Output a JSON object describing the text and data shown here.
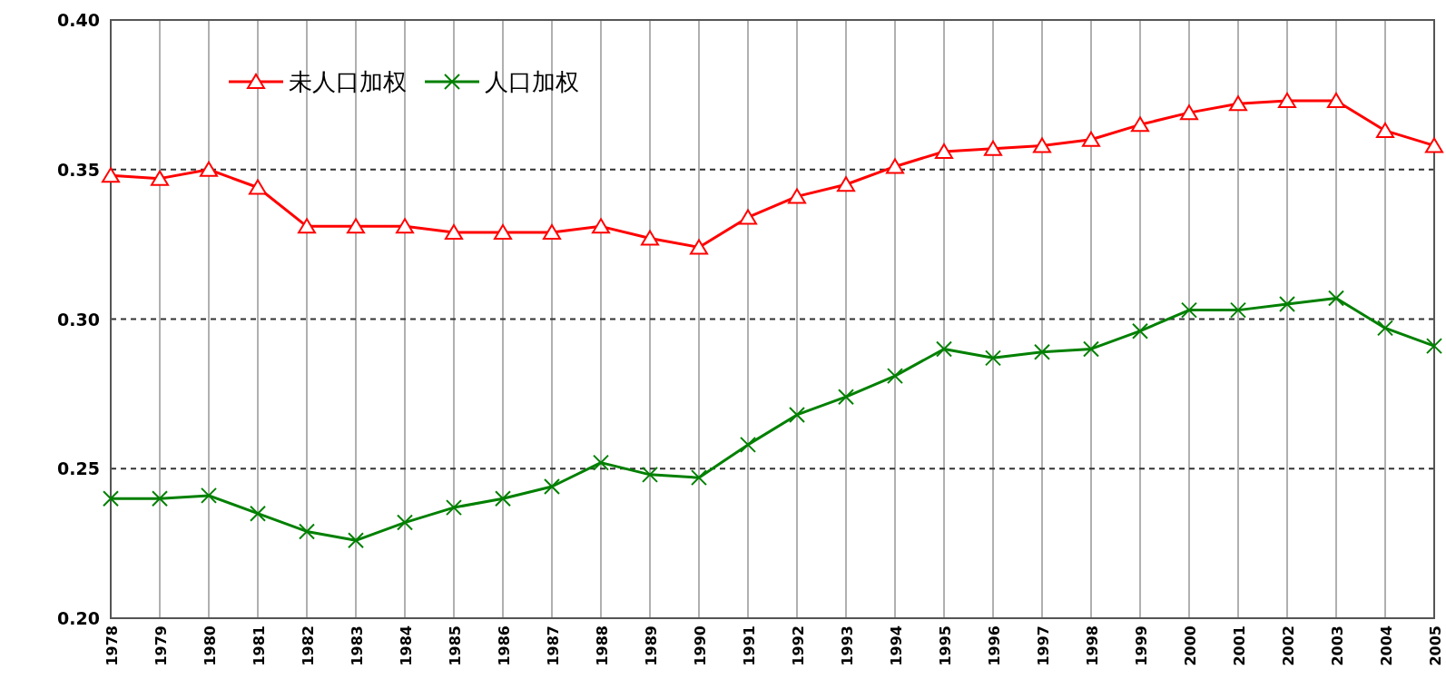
{
  "chart_data": {
    "type": "line",
    "categories": [
      "1978",
      "1979",
      "1980",
      "1981",
      "1982",
      "1983",
      "1984",
      "1985",
      "1986",
      "1987",
      "1988",
      "1989",
      "1990",
      "1991",
      "1992",
      "1993",
      "1994",
      "1995",
      "1996",
      "1997",
      "1998",
      "1999",
      "2000",
      "2001",
      "2002",
      "2003",
      "2004",
      "2005"
    ],
    "series": [
      {
        "name": "未人口加权",
        "color": "#ff0000",
        "marker": "triangle",
        "values": [
          0.348,
          0.347,
          0.35,
          0.344,
          0.331,
          0.331,
          0.331,
          0.329,
          0.329,
          0.329,
          0.331,
          0.327,
          0.324,
          0.334,
          0.341,
          0.345,
          0.351,
          0.356,
          0.357,
          0.358,
          0.36,
          0.365,
          0.369,
          0.372,
          0.373,
          0.373,
          0.363,
          0.358
        ]
      },
      {
        "name": "人口加权",
        "color": "#008000",
        "marker": "cross",
        "values": [
          0.24,
          0.24,
          0.241,
          0.235,
          0.229,
          0.226,
          0.232,
          0.237,
          0.24,
          0.244,
          0.252,
          0.248,
          0.247,
          0.258,
          0.268,
          0.274,
          0.281,
          0.29,
          0.287,
          0.289,
          0.29,
          0.296,
          0.303,
          0.303,
          0.305,
          0.307,
          0.297,
          0.291
        ]
      }
    ],
    "ylim": [
      0.2,
      0.4
    ],
    "yticks": [
      {
        "value": 0.2,
        "label": "0.20"
      },
      {
        "value": 0.25,
        "label": "0.25"
      },
      {
        "value": 0.3,
        "label": "0.30"
      },
      {
        "value": 0.35,
        "label": "0.35"
      },
      {
        "value": 0.4,
        "label": "0.40"
      }
    ],
    "grid": true,
    "legend": "top left"
  }
}
